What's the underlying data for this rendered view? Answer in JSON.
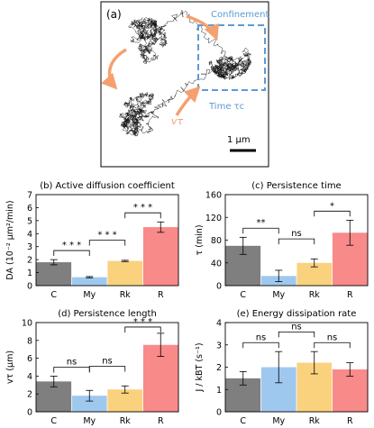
{
  "panel_a": {
    "label": "(a)",
    "confinement_label": "Confinement",
    "time_label": "Time τc",
    "velocity_label": "vτ",
    "scalebar_label": "1 μm",
    "colors": {
      "trajectory": "#111111",
      "accent_blue": "#5b9bd5",
      "accent_orange": "#f4a070"
    }
  },
  "chart_data": [
    {
      "type": "bar",
      "title": "(b) Active diffusion coefficient",
      "ylabel": "DA (10⁻² μm²/min)",
      "categories": [
        "C",
        "My",
        "Rk",
        "R"
      ],
      "values": [
        1.8,
        0.65,
        1.9,
        4.5
      ],
      "errors": [
        0.2,
        0.05,
        0.05,
        0.4
      ],
      "ylim": [
        0,
        7
      ],
      "yticks": [
        "0",
        "1",
        "2",
        "3",
        "4",
        "5",
        "6",
        "7"
      ],
      "colors": [
        "#7f7f7f",
        "#9fc8ef",
        "#fad27e",
        "#f98a8a"
      ],
      "significance": [
        {
          "from": "C",
          "to": "My",
          "label": "* * *"
        },
        {
          "from": "My",
          "to": "Rk",
          "label": "* * *"
        },
        {
          "from": "Rk",
          "to": "R",
          "label": "* * *"
        }
      ]
    },
    {
      "type": "bar",
      "title": "(c) Persistence time",
      "ylabel": "τ (min)",
      "categories": [
        "C",
        "My",
        "Rk",
        "R"
      ],
      "values": [
        70,
        17,
        40,
        93
      ],
      "errors": [
        15,
        10,
        7,
        22
      ],
      "ylim": [
        0,
        160
      ],
      "yticks": [
        "0",
        "40",
        "80",
        "120",
        "160"
      ],
      "colors": [
        "#7f7f7f",
        "#9fc8ef",
        "#fad27e",
        "#f98a8a"
      ],
      "significance": [
        {
          "from": "C",
          "to": "My",
          "label": "**"
        },
        {
          "from": "My",
          "to": "Rk",
          "label": "ns"
        },
        {
          "from": "Rk",
          "to": "R",
          "label": "*"
        }
      ]
    },
    {
      "type": "bar",
      "title": "(d) Persistence length",
      "ylabel": "vτ (μm)",
      "categories": [
        "C",
        "My",
        "Rk",
        "R"
      ],
      "values": [
        3.4,
        1.8,
        2.5,
        7.5
      ],
      "errors": [
        0.6,
        0.6,
        0.4,
        1.3
      ],
      "ylim": [
        0,
        10
      ],
      "yticks": [
        "0",
        "2",
        "4",
        "6",
        "8",
        "10"
      ],
      "colors": [
        "#7f7f7f",
        "#9fc8ef",
        "#fad27e",
        "#f98a8a"
      ],
      "significance": [
        {
          "from": "C",
          "to": "My",
          "label": "ns"
        },
        {
          "from": "My",
          "to": "Rk",
          "label": "ns"
        },
        {
          "from": "Rk",
          "to": "R",
          "label": "* * *"
        }
      ]
    },
    {
      "type": "bar",
      "title": "(e) Energy dissipation rate",
      "ylabel": "J / kBT (s⁻¹)",
      "categories": [
        "C",
        "My",
        "Rk",
        "R"
      ],
      "values": [
        1.5,
        2.0,
        2.2,
        1.9
      ],
      "errors": [
        0.3,
        0.7,
        0.5,
        0.3
      ],
      "ylim": [
        0,
        4
      ],
      "yticks": [
        "0",
        "1",
        "2",
        "3",
        "4"
      ],
      "colors": [
        "#7f7f7f",
        "#9fc8ef",
        "#fad27e",
        "#f98a8a"
      ],
      "significance": [
        {
          "from": "C",
          "to": "My",
          "label": "ns"
        },
        {
          "from": "My",
          "to": "Rk",
          "label": "ns"
        },
        {
          "from": "Rk",
          "to": "R",
          "label": "ns"
        }
      ]
    }
  ]
}
